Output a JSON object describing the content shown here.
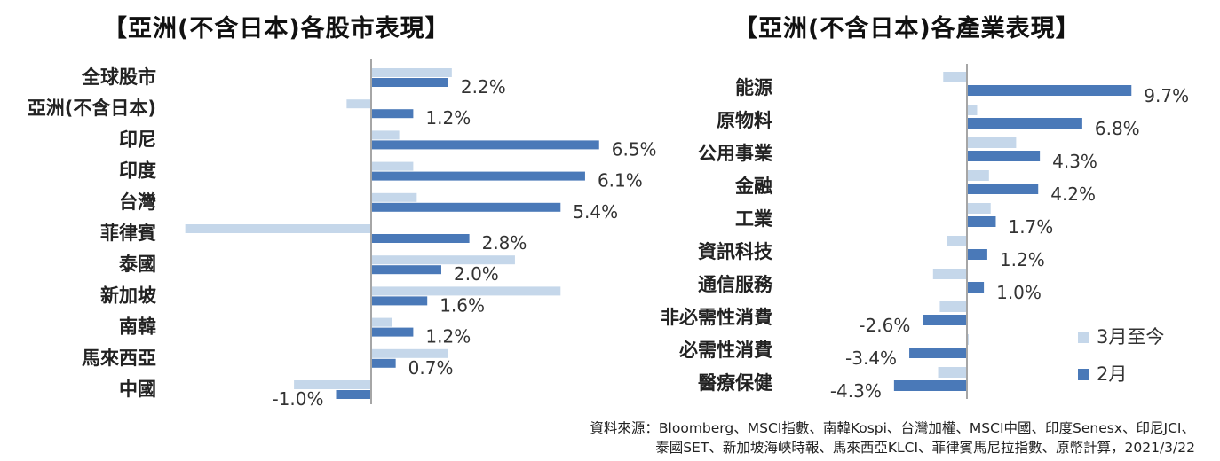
{
  "charts": {
    "left_title": "【亞洲(不含日本)各股市表現】",
    "right_title": "【亞洲(不含日本)各產業表現】"
  },
  "colors": {
    "ytd": "#c5d7ea",
    "feb": "#4a79b8",
    "axis": "#a6a6a6"
  },
  "chart_data": [
    {
      "type": "bar",
      "orientation": "horizontal",
      "title": "【亞洲(不含日本)各股市表現】",
      "categories": [
        "全球股市",
        "亞洲(不含日本)",
        "印尼",
        "印度",
        "台灣",
        "菲律賓",
        "泰國",
        "新加坡",
        "南韓",
        "馬來西亞",
        "中國"
      ],
      "series": [
        {
          "name": "3月至今",
          "values": [
            2.3,
            -0.7,
            0.8,
            1.2,
            1.3,
            -5.3,
            4.1,
            5.4,
            0.6,
            2.2,
            -2.2
          ]
        },
        {
          "name": "2月",
          "values": [
            2.2,
            1.2,
            6.5,
            6.1,
            5.4,
            2.8,
            2.0,
            1.6,
            1.2,
            0.7,
            -1.0
          ]
        }
      ],
      "data_labels": [
        "2.2%",
        "1.2%",
        "6.5%",
        "6.1%",
        "5.4%",
        "2.8%",
        "2.0%",
        "1.6%",
        "1.2%",
        "0.7%",
        "-1.0%"
      ],
      "xlim": [
        -5.3,
        6.5
      ]
    },
    {
      "type": "bar",
      "orientation": "horizontal",
      "title": "【亞洲(不含日本)各產業表現】",
      "categories": [
        "能源",
        "原物料",
        "公用事業",
        "金融",
        "工業",
        "資訊科技",
        "通信服務",
        "非必需性消費",
        "必需性消費",
        "醫療保健"
      ],
      "series": [
        {
          "name": "3月至今",
          "values": [
            -1.4,
            0.6,
            2.9,
            1.3,
            1.4,
            -1.2,
            -2.0,
            -1.6,
            0.1,
            -1.7
          ]
        },
        {
          "name": "2月",
          "values": [
            9.7,
            6.8,
            4.3,
            4.2,
            1.7,
            1.2,
            1.0,
            -2.6,
            -3.4,
            -4.3
          ]
        }
      ],
      "data_labels": [
        "9.7%",
        "6.8%",
        "4.3%",
        "4.2%",
        "1.7%",
        "1.2%",
        "1.0%",
        "-2.6%",
        "-3.4%",
        "-4.3%"
      ],
      "legend": {
        "position": "right",
        "entries": [
          "3月至今",
          "2月"
        ]
      },
      "xlim": [
        -4.3,
        9.7
      ]
    }
  ],
  "source": {
    "line1": "資料來源：Bloomberg、MSCI指數、南韓Kospi、台灣加權、MSCI中國、印度Senesx、印尼JCI、",
    "line2": "泰國SET、新加坡海峽時報、馬來西亞KLCI、菲律賓馬尼拉指數、原幣計算，2021/3/22"
  }
}
